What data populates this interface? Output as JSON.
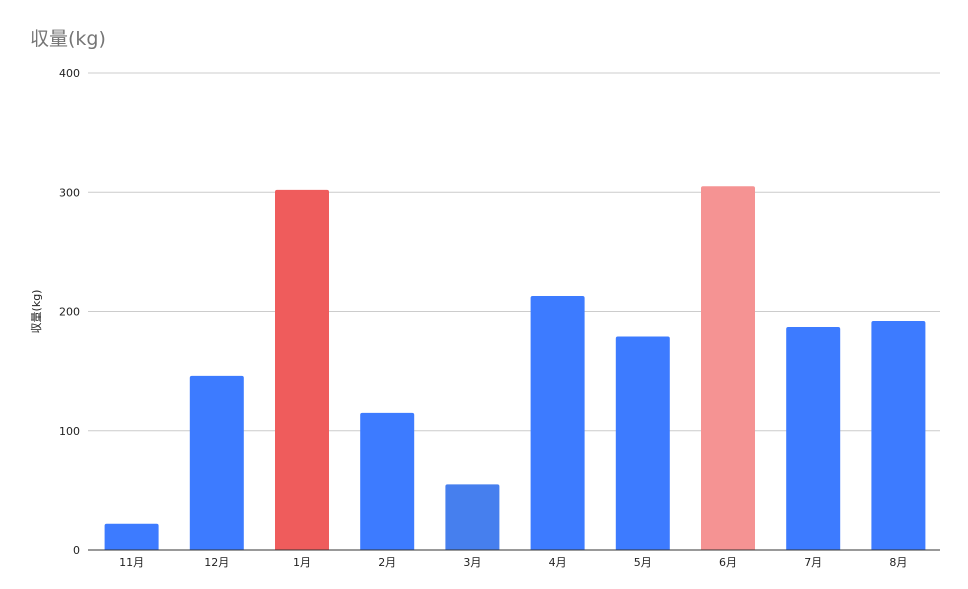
{
  "chart_data": {
    "type": "bar",
    "title": "収量(kg)",
    "xlabel": "",
    "ylabel": "収量(kg)",
    "ylim": [
      0,
      400
    ],
    "yticks": [
      0,
      100,
      200,
      300,
      400
    ],
    "grid": true,
    "categories": [
      "11月",
      "12月",
      "1月",
      "2月",
      "3月",
      "4月",
      "5月",
      "6月",
      "7月",
      "8月"
    ],
    "values": [
      22,
      146,
      302,
      115,
      55,
      213,
      179,
      305,
      187,
      192
    ],
    "bar_colors": [
      "#3d7bff",
      "#3d7bff",
      "#ef5c5c",
      "#3d7bff",
      "#467fee",
      "#3d7bff",
      "#3d7bff",
      "#f59393",
      "#3d7bff",
      "#3d7bff"
    ]
  },
  "colors": {
    "gridline": "#cccccc",
    "axis": "#333333",
    "title": "#757575"
  }
}
